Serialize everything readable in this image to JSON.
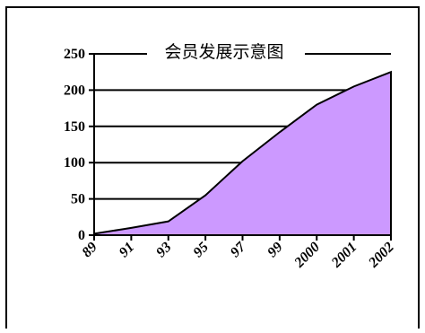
{
  "chart_data": {
    "type": "area",
    "title": "会员发展示意图",
    "categories": [
      "89",
      "91",
      "93",
      "95",
      "97",
      "99",
      "2000",
      "2001",
      "2002"
    ],
    "values": [
      2,
      10,
      19,
      55,
      102,
      142,
      180,
      205,
      225
    ],
    "ylim": [
      0,
      250
    ],
    "yticks": [
      0,
      50,
      100,
      150,
      200,
      250
    ],
    "grid": true,
    "legend": "none",
    "area_color": "#cc99ff",
    "line_color": "#000000"
  }
}
